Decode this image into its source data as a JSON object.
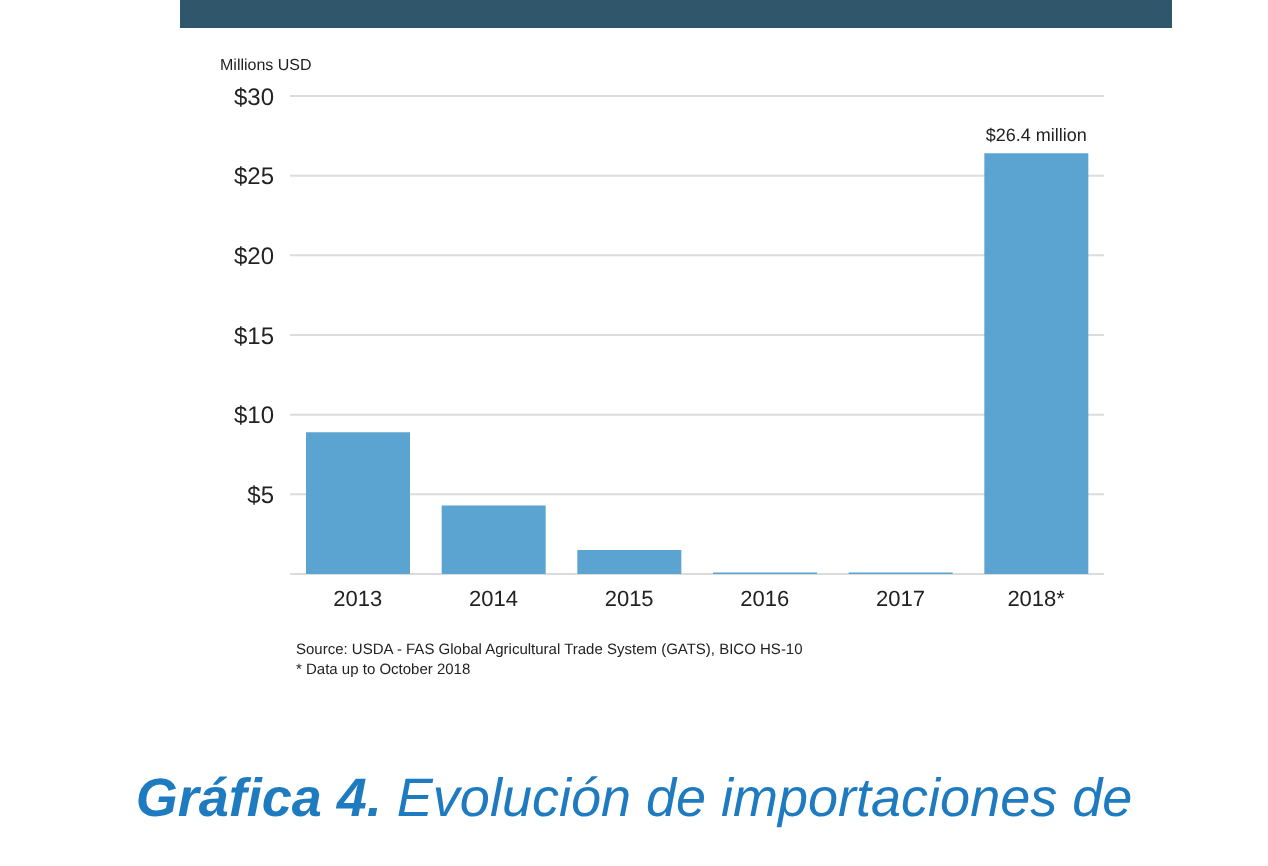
{
  "chart_data": {
    "type": "bar",
    "title": "Gráfica 4. Evolución de importaciones de",
    "ylabel": "Millions USD",
    "categories": [
      "2013",
      "2014",
      "2015",
      "2016",
      "2017",
      "2018*"
    ],
    "values": [
      8.9,
      4.3,
      1.5,
      0.1,
      0.1,
      26.4
    ],
    "color": "#5ba3d0",
    "value_labels": [
      null,
      null,
      null,
      null,
      null,
      "$26.4 million"
    ],
    "ylim": [
      0,
      30
    ],
    "yticks": [
      {
        "value": 0,
        "label": null
      },
      {
        "value": 5,
        "label": "$5"
      },
      {
        "value": 10,
        "label": "$10"
      },
      {
        "value": 15,
        "label": "$15"
      },
      {
        "value": 20,
        "label": "$20"
      },
      {
        "value": 25,
        "label": "$25"
      },
      {
        "value": 30,
        "label": "$30"
      }
    ],
    "grid": "y",
    "annotations": [
      "Source: USDA - FAS  Global Agricultural Trade System (GATS), BICO HS-10",
      "* Data up to October 2018"
    ]
  }
}
